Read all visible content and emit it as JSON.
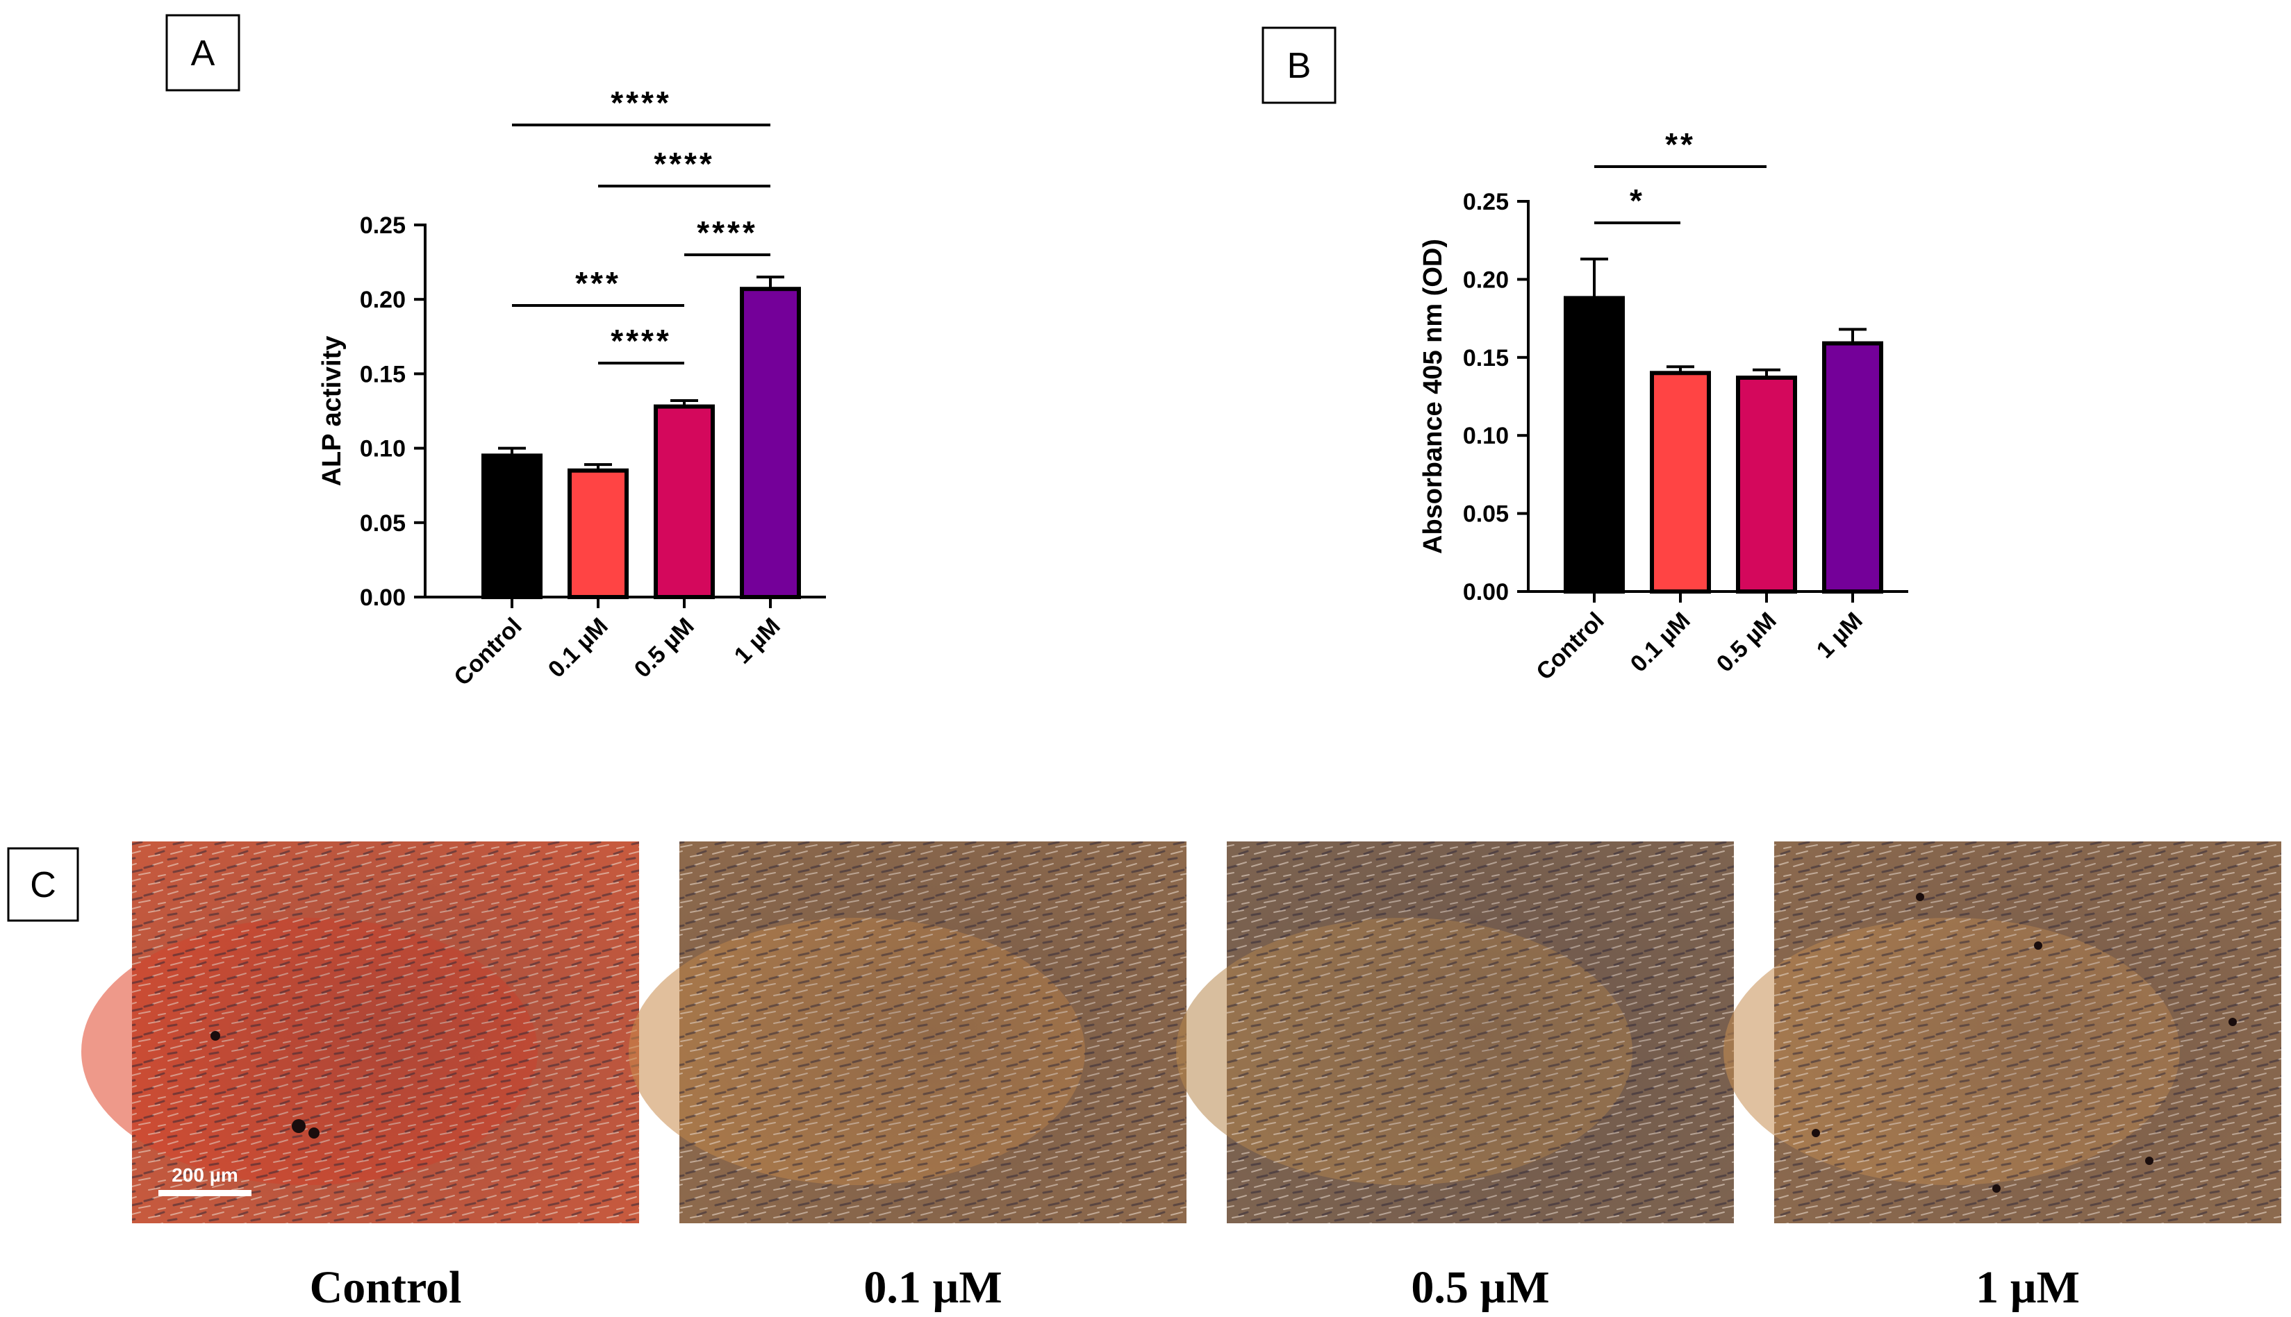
{
  "panels": {
    "a": "A",
    "b": "B",
    "c": "C"
  },
  "chart_data": [
    {
      "type": "bar",
      "panel": "A",
      "categories": [
        "Control",
        "0.1 µM",
        "0.5 µM",
        "1 µM"
      ],
      "values": [
        0.095,
        0.085,
        0.128,
        0.207
      ],
      "errors": [
        0.005,
        0.004,
        0.004,
        0.008
      ],
      "colors": [
        "#000000",
        "#FF4444",
        "#D4085C",
        "#740099"
      ],
      "ylabel": "ALP activity",
      "ylim": [
        0,
        0.25
      ],
      "yticks": [
        "0.00",
        "0.05",
        "0.10",
        "0.15",
        "0.20",
        "0.25"
      ],
      "significance": [
        {
          "from": 0,
          "to": 3,
          "label": "****"
        },
        {
          "from": 1,
          "to": 3,
          "label": "****"
        },
        {
          "from": 2,
          "to": 3,
          "label": "****"
        },
        {
          "from": 0,
          "to": 2,
          "label": "***"
        },
        {
          "from": 1,
          "to": 2,
          "label": "****"
        }
      ]
    },
    {
      "type": "bar",
      "panel": "B",
      "categories": [
        "Control",
        "0.1 µM",
        "0.5 µM",
        "1 µM"
      ],
      "values": [
        0.188,
        0.14,
        0.137,
        0.159
      ],
      "errors": [
        0.025,
        0.004,
        0.005,
        0.009
      ],
      "colors": [
        "#000000",
        "#FF4444",
        "#D4085C",
        "#740099"
      ],
      "ylabel": "Absorbance 405 nm (OD)",
      "ylim": [
        0,
        0.25
      ],
      "yticks": [
        "0.00",
        "0.05",
        "0.10",
        "0.15",
        "0.20",
        "0.25"
      ],
      "significance": [
        {
          "from": 0,
          "to": 2,
          "label": "**"
        },
        {
          "from": 0,
          "to": 1,
          "label": "*"
        }
      ]
    }
  ],
  "micrographs": {
    "scale_bar": "200 µm",
    "items": [
      {
        "caption": "Control",
        "base": "#C85A3E",
        "tint": "#E0452A"
      },
      {
        "caption": "0.1 µM",
        "base": "#8E6A4C",
        "tint": "#C98A4A"
      },
      {
        "caption": "0.5 µM",
        "base": "#7E6450",
        "tint": "#B8884E"
      },
      {
        "caption": "1 µM",
        "base": "#8C6A4E",
        "tint": "#C68E52"
      }
    ]
  }
}
